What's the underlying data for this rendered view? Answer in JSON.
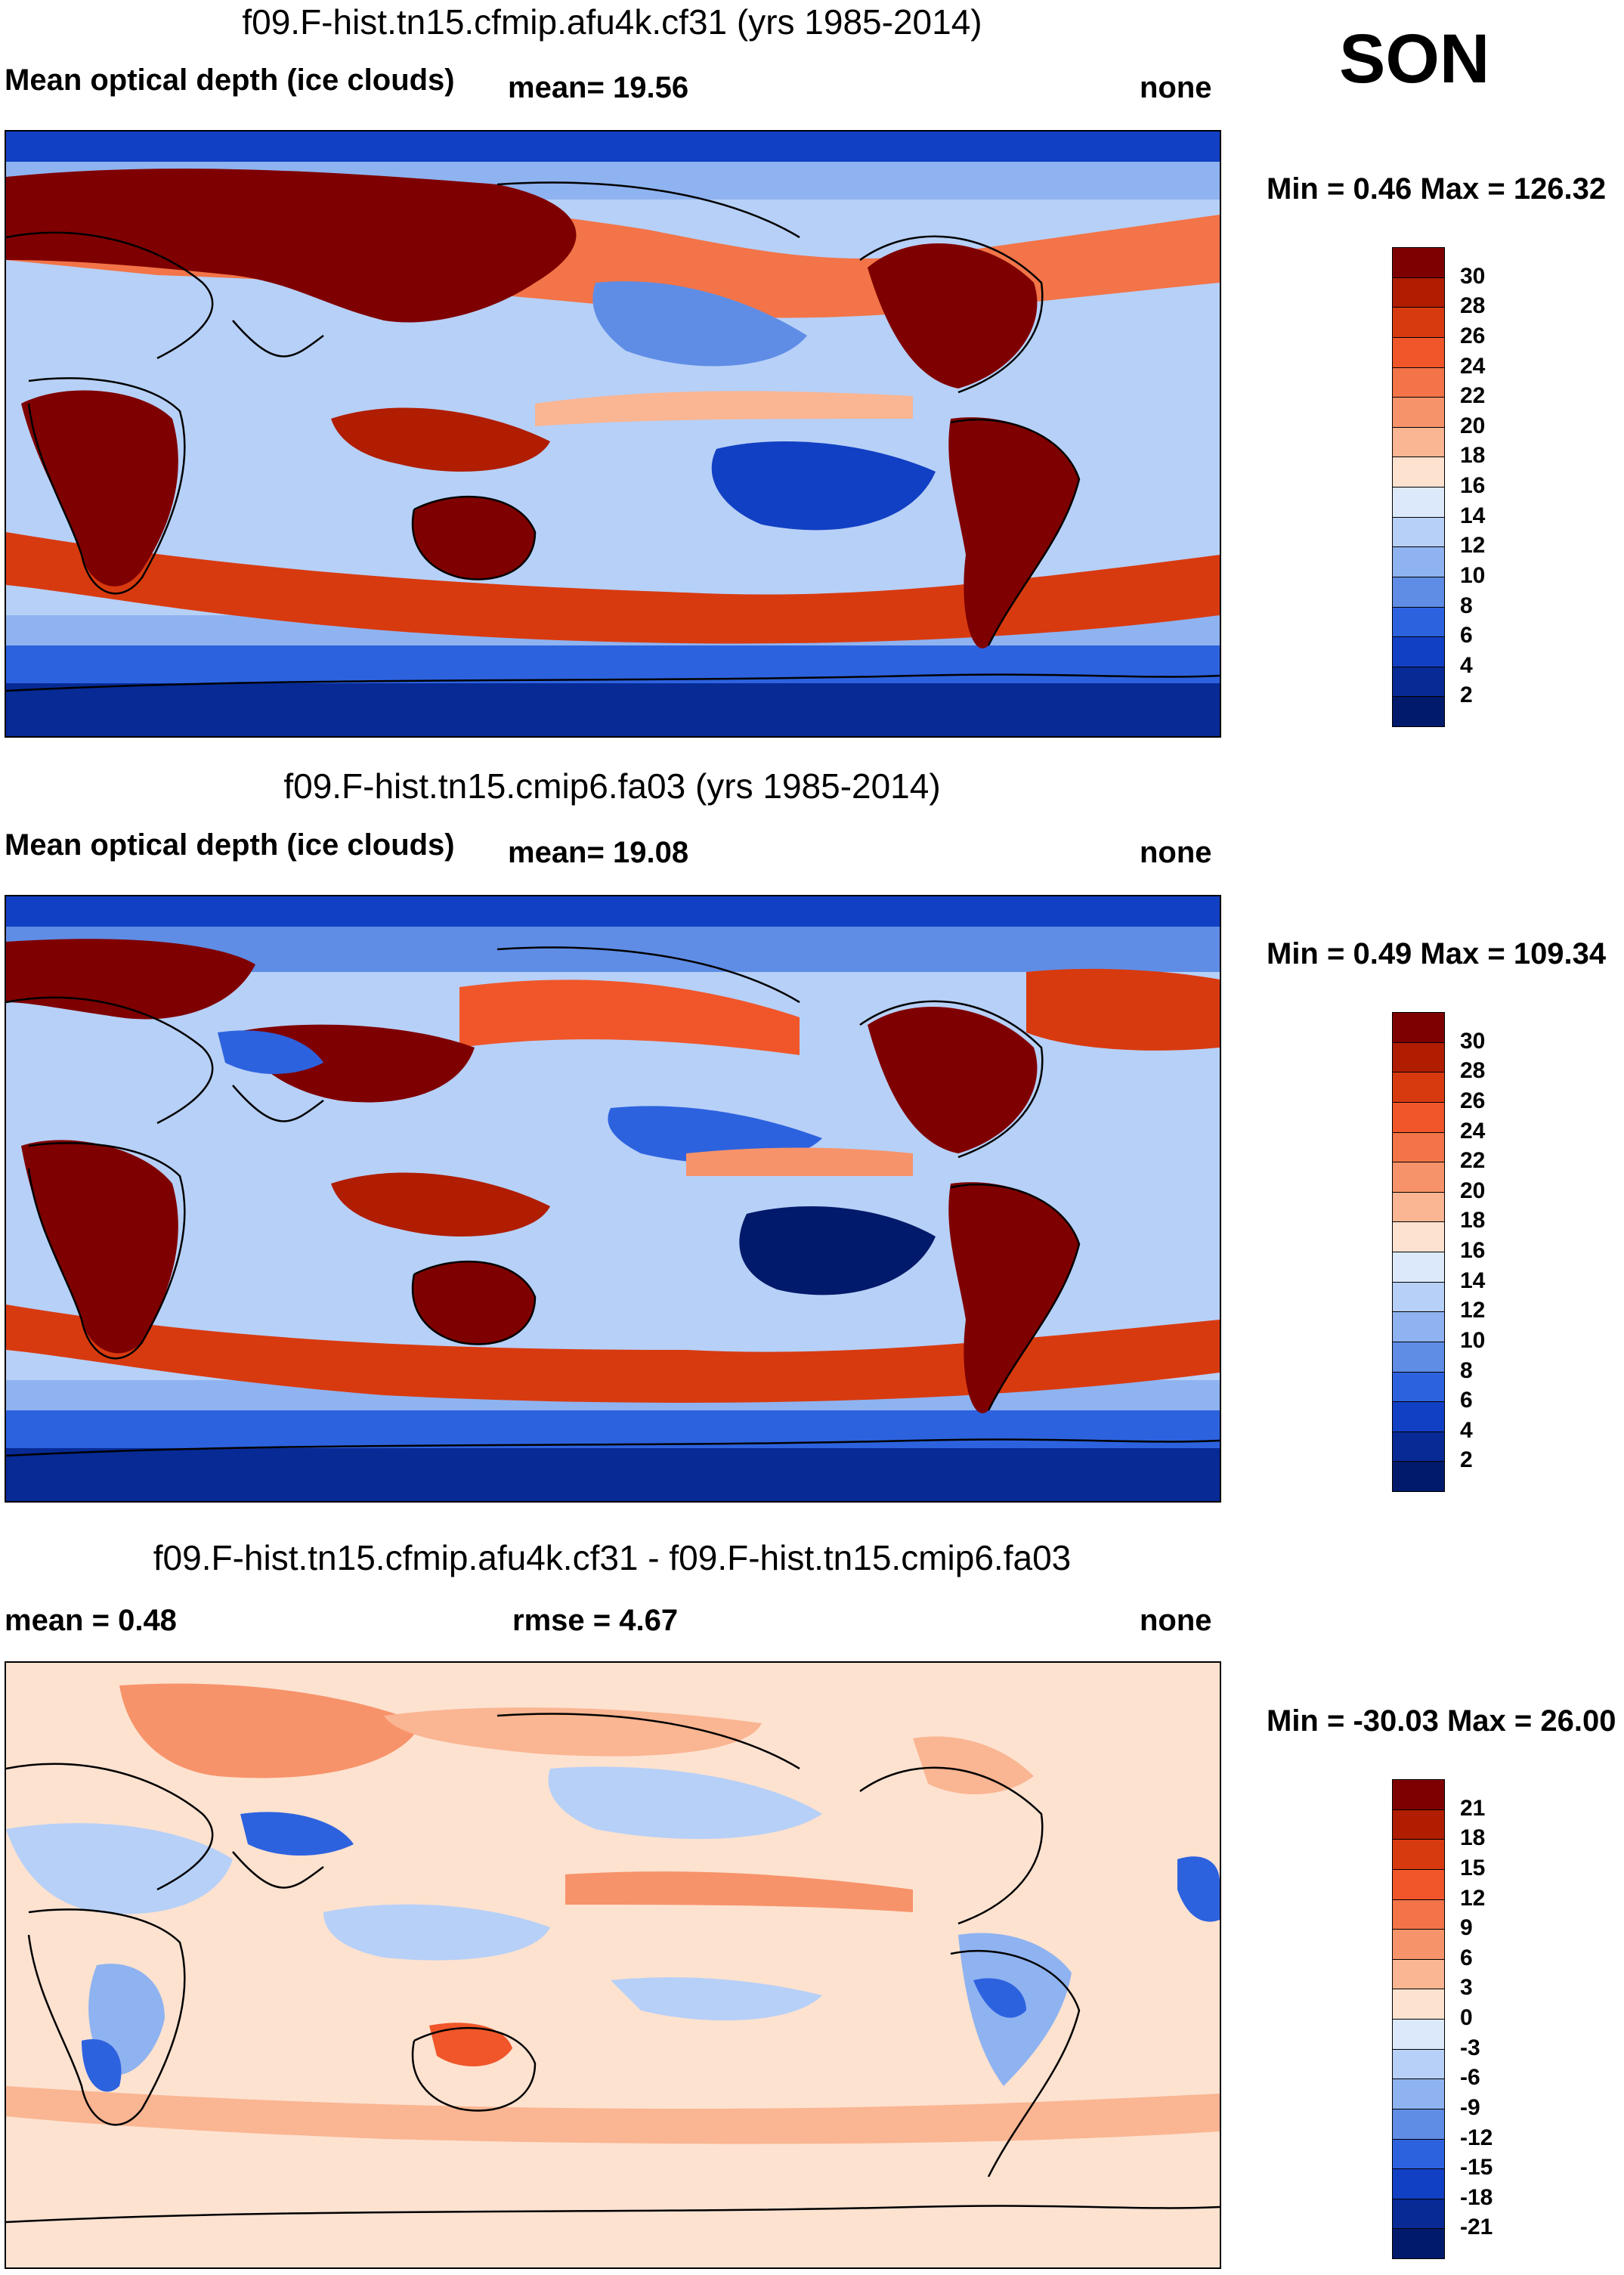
{
  "season": "SON",
  "panels": [
    {
      "title": "f09.F-hist.tn15.cfmip.afu4k.cf31 (yrs 1985-2014)",
      "variable": "Mean optical depth (ice clouds)",
      "mean_label": "mean=  19.56",
      "units": "none",
      "minmax": "Min =   0.46 Max = 126.32",
      "colorbar": {
        "ticks": [
          "30",
          "28",
          "26",
          "24",
          "22",
          "20",
          "18",
          "16",
          "14",
          "12",
          "10",
          "8",
          "6",
          "4",
          "2"
        ],
        "colors": [
          "#7f0000",
          "#b01d00",
          "#d83a10",
          "#f0562a",
          "#f27448",
          "#f7936a",
          "#fab592",
          "#fde2d0",
          "#dbe9fb",
          "#b7d0f7",
          "#8fb3f0",
          "#5f8de6",
          "#2d62df",
          "#1240c4",
          "#072a95",
          "#021a6b"
        ]
      }
    },
    {
      "title": "f09.F-hist.tn15.cmip6.fa03 (yrs 1985-2014)",
      "variable": "Mean optical depth (ice clouds)",
      "mean_label": "mean=  19.08",
      "units": "none",
      "minmax": "Min =   0.49 Max = 109.34",
      "colorbar": {
        "ticks": [
          "30",
          "28",
          "26",
          "24",
          "22",
          "20",
          "18",
          "16",
          "14",
          "12",
          "10",
          "8",
          "6",
          "4",
          "2"
        ],
        "colors": [
          "#7f0000",
          "#b01d00",
          "#d83a10",
          "#f0562a",
          "#f27448",
          "#f7936a",
          "#fab592",
          "#fde2d0",
          "#dbe9fb",
          "#b7d0f7",
          "#8fb3f0",
          "#5f8de6",
          "#2d62df",
          "#1240c4",
          "#072a95",
          "#021a6b"
        ]
      }
    },
    {
      "title": "f09.F-hist.tn15.cfmip.afu4k.cf31 - f09.F-hist.tn15.cmip6.fa03",
      "mean_label": "mean =   0.48",
      "rmse_label": "rmse =    4.67",
      "units": "none",
      "minmax": "Min = -30.03 Max =  26.00",
      "colorbar": {
        "ticks": [
          "21",
          "18",
          "15",
          "12",
          "9",
          "6",
          "3",
          "0",
          "-3",
          "-6",
          "-9",
          "-12",
          "-15",
          "-18",
          "-21"
        ],
        "colors": [
          "#7f0000",
          "#b01d00",
          "#d83a10",
          "#f0562a",
          "#f27448",
          "#f7936a",
          "#fab592",
          "#fde2d0",
          "#dbe9fb",
          "#b7d0f7",
          "#8fb3f0",
          "#5f8de6",
          "#2d62df",
          "#1240c4",
          "#072a95",
          "#021a6b"
        ]
      }
    }
  ]
}
